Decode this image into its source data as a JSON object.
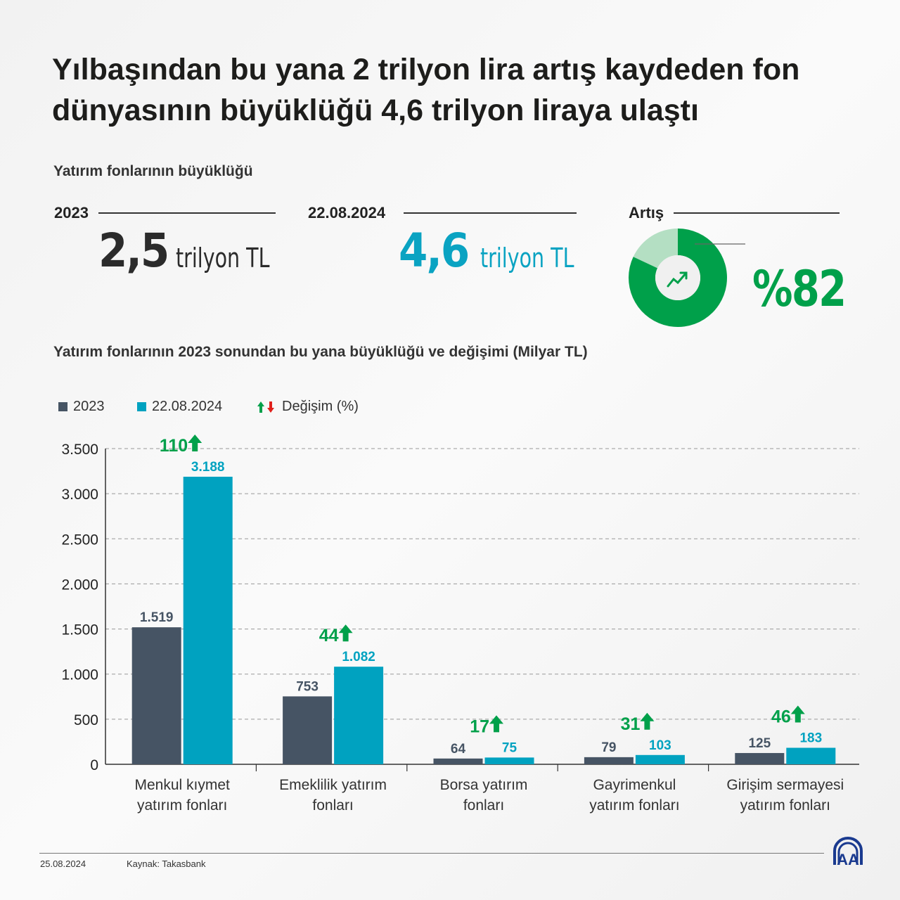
{
  "title": "Yılbaşından bu yana 2 trilyon lira artış kaydeden fon dünyasının büyüklüğü 4,6 trilyon liraya ulaştı",
  "subtitle": "Yatırım fonlarının büyüklüğü",
  "kpis": [
    {
      "label": "2023",
      "value": "2,5",
      "unit": "trilyon TL",
      "color": "#2b2b2b"
    },
    {
      "label": "22.08.2024",
      "value": "4,6",
      "unit": "trilyon TL",
      "color": "#0aa3c2"
    }
  ],
  "increase": {
    "label": "Artış",
    "value": "%82",
    "percent": 82,
    "color": "#00a04a",
    "light_color": "#b4dfc3",
    "icon": "trending-up-icon"
  },
  "chart_data": {
    "type": "bar",
    "title": "Yatırım fonlarının 2023 sonundan bu yana büyüklüğü ve değişimi (Milyar TL)",
    "categories": [
      "Menkul kıymet yatırım fonları",
      "Emeklilik yatırım fonları",
      "Borsa yatırım fonları",
      "Gayrimenkul yatırım fonları",
      "Girişim sermayesi yatırım fonları"
    ],
    "category_lines": [
      [
        "Menkul kıymet",
        "yatırım fonları"
      ],
      [
        "Emeklilik yatırım",
        "fonları"
      ],
      [
        "Borsa yatırım",
        "fonları"
      ],
      [
        "Gayrimenkul",
        "yatırım fonları"
      ],
      [
        "Girişim sermayesi",
        "yatırım fonları"
      ]
    ],
    "series": [
      {
        "name": "2023",
        "color": "#465464",
        "values": [
          1519,
          753,
          64,
          79,
          125
        ],
        "labels": [
          "1.519",
          "753",
          "64",
          "79",
          "125"
        ]
      },
      {
        "name": "22.08.2024",
        "color": "#00a2c0",
        "values": [
          3188,
          1082,
          75,
          103,
          183
        ],
        "labels": [
          "3.188",
          "1.082",
          "75",
          "103",
          "183"
        ]
      }
    ],
    "change": {
      "name": "Değişim (%)",
      "values": [
        110,
        44,
        17,
        31,
        46
      ],
      "color": "#00a04a",
      "down_color": "#e0201b"
    },
    "ylim": [
      0,
      3500
    ],
    "yticks": [
      0,
      500,
      1000,
      1500,
      2000,
      2500,
      3000,
      3500
    ],
    "ytick_labels": [
      "0",
      "500",
      "1.000",
      "1.500",
      "2.000",
      "2.500",
      "3.000",
      "3.500"
    ],
    "grid": true,
    "legend_position": "top-left"
  },
  "footer": {
    "date": "25.08.2024",
    "source": "Kaynak: Takasbank",
    "logo": "AA"
  }
}
